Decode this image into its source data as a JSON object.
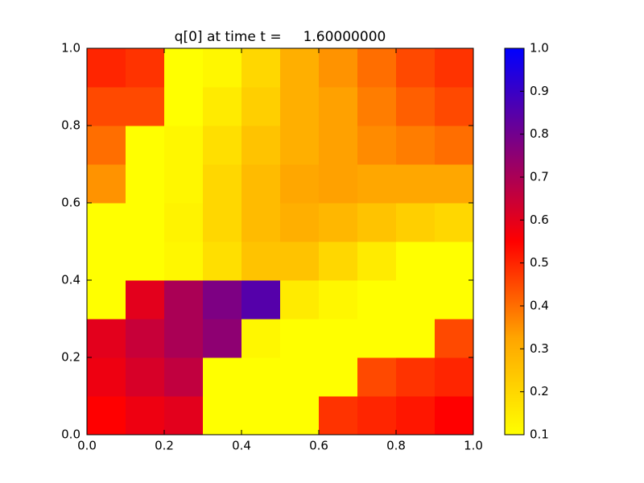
{
  "chart_data": {
    "type": "heatmap",
    "title": "q[0] at time t =     1.60000000",
    "z": [
      [
        0.55,
        0.58,
        0.6,
        0.1,
        0.1,
        0.1,
        0.48,
        0.5,
        0.52,
        0.55
      ],
      [
        0.58,
        0.62,
        0.66,
        0.1,
        0.1,
        0.1,
        0.1,
        0.45,
        0.48,
        0.5
      ],
      [
        0.6,
        0.65,
        0.7,
        0.75,
        0.12,
        0.1,
        0.1,
        0.1,
        0.1,
        0.45
      ],
      [
        0.1,
        0.6,
        0.7,
        0.78,
        0.85,
        0.15,
        0.12,
        0.1,
        0.1,
        0.1
      ],
      [
        0.1,
        0.1,
        0.12,
        0.18,
        0.25,
        0.25,
        0.2,
        0.15,
        0.1,
        0.1
      ],
      [
        0.1,
        0.1,
        0.13,
        0.2,
        0.27,
        0.3,
        0.28,
        0.25,
        0.22,
        0.2
      ],
      [
        0.35,
        0.1,
        0.12,
        0.2,
        0.27,
        0.32,
        0.33,
        0.32,
        0.32,
        0.32
      ],
      [
        0.4,
        0.1,
        0.12,
        0.18,
        0.25,
        0.3,
        0.33,
        0.36,
        0.38,
        0.4
      ],
      [
        0.45,
        0.45,
        0.1,
        0.15,
        0.22,
        0.3,
        0.33,
        0.38,
        0.42,
        0.45
      ],
      [
        0.5,
        0.48,
        0.1,
        0.12,
        0.2,
        0.3,
        0.35,
        0.4,
        0.45,
        0.48
      ]
    ],
    "colormap": [
      "#ffff00",
      "#ffa500",
      "#ff0000",
      "#800080",
      "#0000ff"
    ],
    "xlim": [
      0,
      1
    ],
    "ylim": [
      0,
      1
    ],
    "xticks": [
      {
        "value": 0,
        "label": "0.0"
      },
      0.2,
      0.4,
      0.6,
      0.8,
      {
        "value": 1,
        "label": "1.0"
      }
    ],
    "yticks": [
      {
        "value": 0,
        "label": "0.0"
      },
      0.2,
      0.4,
      0.6,
      0.8,
      {
        "value": 1,
        "label": "1.0"
      }
    ],
    "clim": [
      0.1,
      1
    ],
    "cticks": [
      0.1,
      0.2,
      0.3,
      0.4,
      0.5,
      0.6,
      0.7,
      0.8,
      0.9,
      {
        "value": 1,
        "label": "1.0"
      }
    ]
  }
}
